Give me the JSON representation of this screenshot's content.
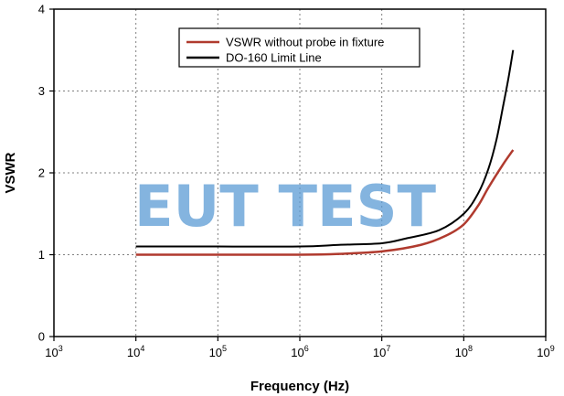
{
  "chart_data": {
    "type": "line",
    "xlabel": "Frequency (Hz)",
    "ylabel": "VSWR",
    "x_scale": "log",
    "xlim": [
      1000,
      1000000000
    ],
    "ylim": [
      0,
      4
    ],
    "x_ticks": [
      {
        "base": "10",
        "exp": "3",
        "value": 1000
      },
      {
        "base": "10",
        "exp": "4",
        "value": 10000
      },
      {
        "base": "10",
        "exp": "5",
        "value": 100000
      },
      {
        "base": "10",
        "exp": "6",
        "value": 1000000
      },
      {
        "base": "10",
        "exp": "7",
        "value": 10000000
      },
      {
        "base": "10",
        "exp": "8",
        "value": 100000000
      },
      {
        "base": "10",
        "exp": "9",
        "value": 1000000000
      }
    ],
    "y_ticks": [
      "0",
      "1",
      "2",
      "3",
      "4"
    ],
    "grid": true,
    "legend_position": "top-center",
    "series": [
      {
        "name": "VSWR without probe in fixture",
        "color": "#b03a2e",
        "x": [
          10000,
          100000,
          1000000,
          3000000,
          10000000,
          30000000,
          60000000,
          100000000,
          150000000,
          200000000,
          300000000,
          400000000
        ],
        "y": [
          1.0,
          1.0,
          1.0,
          1.01,
          1.04,
          1.12,
          1.23,
          1.37,
          1.6,
          1.82,
          2.1,
          2.28
        ]
      },
      {
        "name": "DO-160 Limit Line",
        "color": "#000000",
        "x": [
          10000,
          100000,
          1000000,
          3000000,
          10000000,
          20000000,
          50000000,
          100000000,
          150000000,
          200000000,
          250000000,
          300000000,
          350000000,
          400000000
        ],
        "y": [
          1.1,
          1.1,
          1.1,
          1.12,
          1.14,
          1.2,
          1.3,
          1.5,
          1.75,
          2.05,
          2.4,
          2.8,
          3.15,
          3.5
        ]
      }
    ]
  },
  "watermark": {
    "text": "EUT TEST",
    "color": "#5b9bd5"
  }
}
